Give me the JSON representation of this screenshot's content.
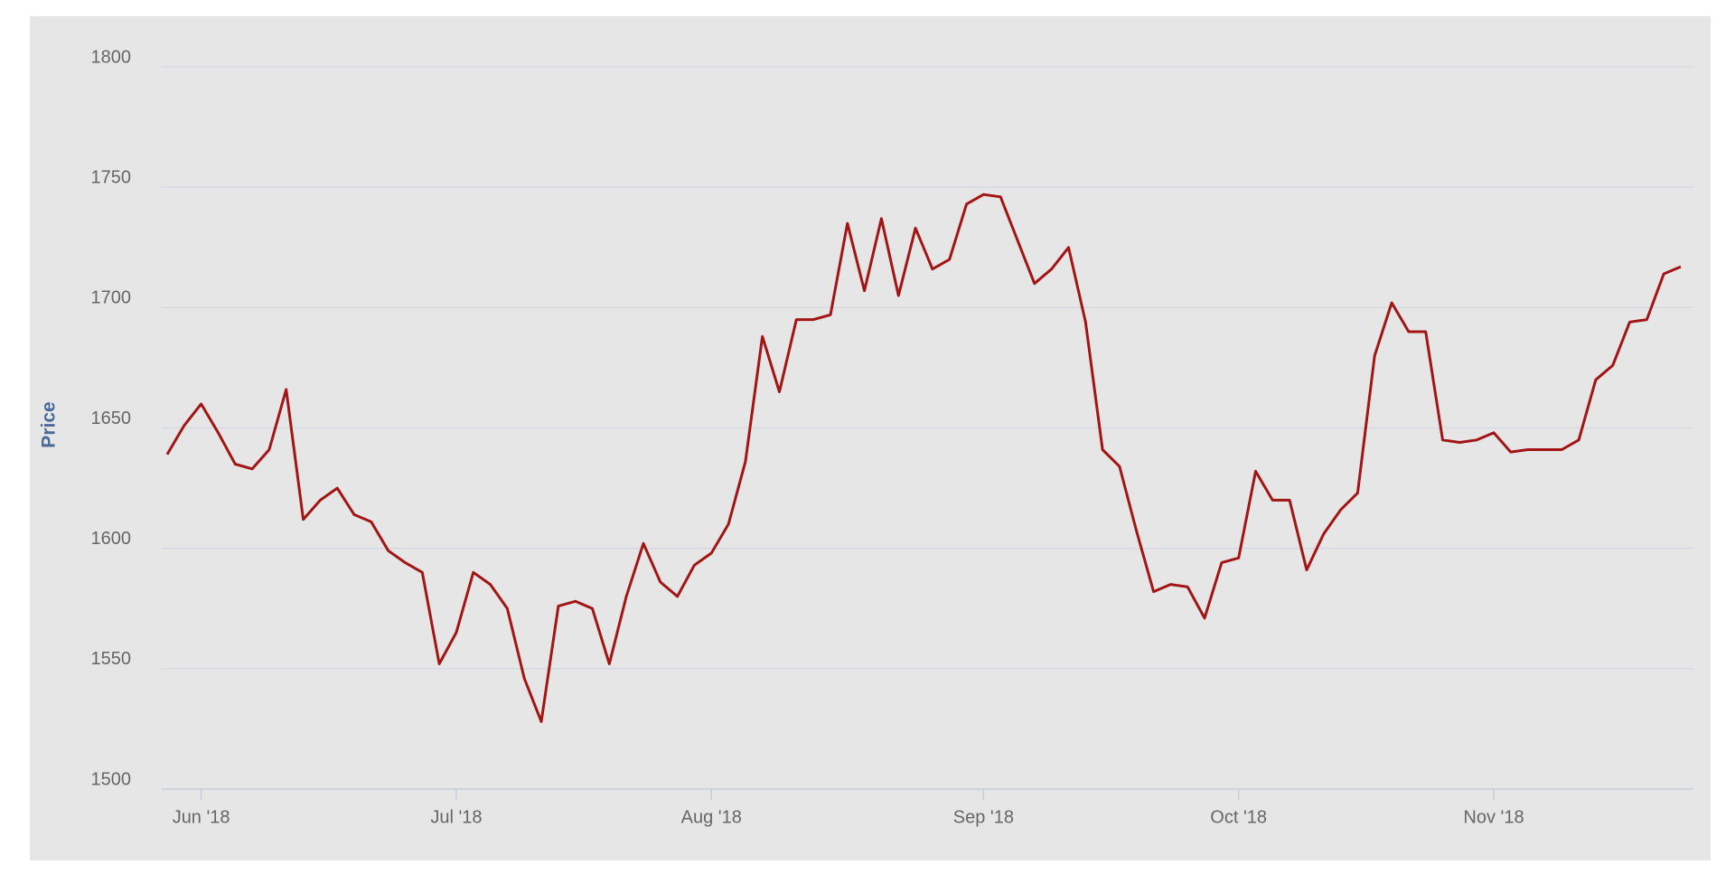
{
  "chart_data": {
    "type": "line",
    "y_label": "Price",
    "categories": [
      null,
      null,
      "Jun '18",
      null,
      null,
      null,
      null,
      null,
      null,
      null,
      null,
      null,
      null,
      null,
      null,
      null,
      null,
      "Jul '18",
      null,
      null,
      null,
      null,
      null,
      null,
      null,
      null,
      null,
      null,
      null,
      null,
      null,
      null,
      "Aug '18",
      null,
      null,
      null,
      null,
      null,
      null,
      null,
      null,
      null,
      null,
      null,
      null,
      null,
      null,
      null,
      "Sep '18",
      null,
      null,
      null,
      null,
      null,
      null,
      null,
      null,
      null,
      null,
      null,
      null,
      null,
      null,
      "Oct '18",
      null,
      null,
      null,
      null,
      null,
      null,
      null,
      null,
      null,
      null,
      null,
      null,
      null,
      null,
      "Nov '18",
      null,
      null,
      null,
      null,
      null,
      null,
      null,
      null,
      null,
      null,
      null
    ],
    "series": [
      {
        "name": "Price",
        "color": "#a31515",
        "values": [
          1639,
          1651,
          1660,
          1648,
          1635,
          1633,
          1641,
          1666,
          1612,
          1620,
          1625,
          1614,
          1611,
          1599,
          1594,
          1590,
          1552,
          1565,
          1590,
          1585,
          1575,
          1546,
          1528,
          1576,
          1578,
          1575,
          1552,
          1580,
          1602,
          1586,
          1580,
          1593,
          1598,
          1610,
          1636,
          1688,
          1665,
          1695,
          1695,
          1697,
          1735,
          1707,
          1737,
          1705,
          1733,
          1716,
          1720,
          1743,
          1747,
          1746,
          1728,
          1710,
          1716,
          1725,
          1694,
          1641,
          1634,
          1607,
          1582,
          1585,
          1584,
          1571,
          1594,
          1596,
          1632,
          1620,
          1620,
          1591,
          1606,
          1616,
          1623,
          1680,
          1702,
          1690,
          1690,
          1645,
          1644,
          1645,
          1648,
          1640,
          1641,
          1641,
          1641,
          1645,
          1670,
          1676,
          1694,
          1695,
          1714,
          1717
        ]
      }
    ],
    "ylim": [
      1500,
      1800
    ],
    "yticks": [
      1500,
      1550,
      1600,
      1650,
      1700,
      1750,
      1800
    ],
    "grid": true
  }
}
